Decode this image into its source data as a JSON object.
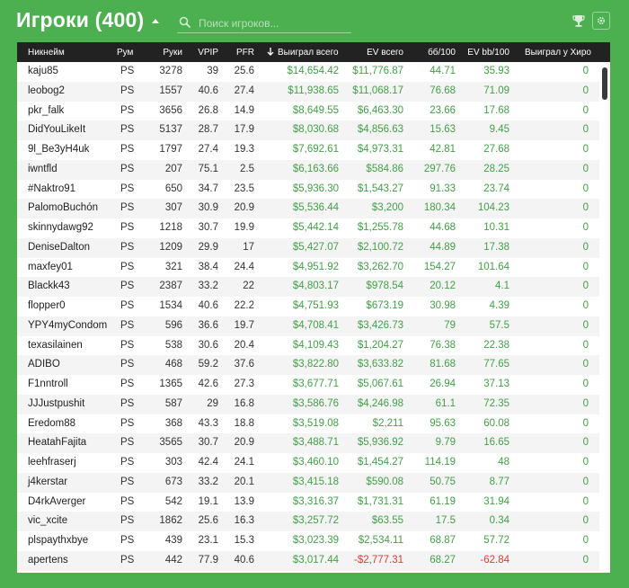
{
  "header": {
    "title": "Игроки (400)",
    "search_placeholder": "Поиск игроков..."
  },
  "icons": {
    "sort": "caret-up-icon",
    "search": "search-icon",
    "trophy": "trophy-icon",
    "settings": "gear-icon",
    "sort_column": "arrow-down-icon"
  },
  "colors": {
    "background": "#4caf50",
    "header_row": "#222222",
    "positive": "#43a047",
    "negative": "#e53935"
  },
  "table": {
    "columns": {
      "nick": "Никнейм",
      "room": "Рум",
      "hands": "Руки",
      "vpip": "VPIP",
      "pfr": "PFR",
      "won": "Выиграл всего",
      "ev": "EV всего",
      "bb100": "бб/100",
      "evbb": "EV bb/100",
      "hero": "Выиграл у Хиро"
    },
    "rows": [
      {
        "nick": "kaju85",
        "room": "PS",
        "hands": "3278",
        "vpip": "39",
        "pfr": "25.6",
        "won": "$14,654.42",
        "ev": "$11,776.87",
        "bb100": "44.71",
        "evbb": "35.93",
        "hero": "0"
      },
      {
        "nick": "leobog2",
        "room": "PS",
        "hands": "1557",
        "vpip": "40.6",
        "pfr": "27.4",
        "won": "$11,938.65",
        "ev": "$11,068.17",
        "bb100": "76.68",
        "evbb": "71.09",
        "hero": "0"
      },
      {
        "nick": "pkr_falk",
        "room": "PS",
        "hands": "3656",
        "vpip": "26.8",
        "pfr": "14.9",
        "won": "$8,649.55",
        "ev": "$6,463.30",
        "bb100": "23.66",
        "evbb": "17.68",
        "hero": "0"
      },
      {
        "nick": "DidYouLikeIt",
        "room": "PS",
        "hands": "5137",
        "vpip": "28.7",
        "pfr": "17.9",
        "won": "$8,030.68",
        "ev": "$4,856.63",
        "bb100": "15.63",
        "evbb": "9.45",
        "hero": "0"
      },
      {
        "nick": "9l_Be3yH4uk",
        "room": "PS",
        "hands": "1797",
        "vpip": "27.4",
        "pfr": "19.3",
        "won": "$7,692.61",
        "ev": "$4,973.31",
        "bb100": "42.81",
        "evbb": "27.68",
        "hero": "0"
      },
      {
        "nick": "iwntfld",
        "room": "PS",
        "hands": "207",
        "vpip": "75.1",
        "pfr": "2.5",
        "won": "$6,163.66",
        "ev": "$584.86",
        "bb100": "297.76",
        "evbb": "28.25",
        "hero": "0"
      },
      {
        "nick": "#Naktro91",
        "room": "PS",
        "hands": "650",
        "vpip": "34.7",
        "pfr": "23.5",
        "won": "$5,936.30",
        "ev": "$1,543.27",
        "bb100": "91.33",
        "evbb": "23.74",
        "hero": "0"
      },
      {
        "nick": "PalomoBuchón",
        "room": "PS",
        "hands": "307",
        "vpip": "30.9",
        "pfr": "20.9",
        "won": "$5,536.44",
        "ev": "$3,200",
        "bb100": "180.34",
        "evbb": "104.23",
        "hero": "0"
      },
      {
        "nick": "skinnydawg92",
        "room": "PS",
        "hands": "1218",
        "vpip": "30.7",
        "pfr": "19.9",
        "won": "$5,442.14",
        "ev": "$1,255.78",
        "bb100": "44.68",
        "evbb": "10.31",
        "hero": "0"
      },
      {
        "nick": "DeniseDalton",
        "room": "PS",
        "hands": "1209",
        "vpip": "29.9",
        "pfr": "17",
        "won": "$5,427.07",
        "ev": "$2,100.72",
        "bb100": "44.89",
        "evbb": "17.38",
        "hero": "0"
      },
      {
        "nick": "maxfey01",
        "room": "PS",
        "hands": "321",
        "vpip": "38.4",
        "pfr": "24.4",
        "won": "$4,951.92",
        "ev": "$3,262.70",
        "bb100": "154.27",
        "evbb": "101.64",
        "hero": "0"
      },
      {
        "nick": "Blackk43",
        "room": "PS",
        "hands": "2387",
        "vpip": "33.2",
        "pfr": "22",
        "won": "$4,803.17",
        "ev": "$978.54",
        "bb100": "20.12",
        "evbb": "4.1",
        "hero": "0"
      },
      {
        "nick": "flopper0",
        "room": "PS",
        "hands": "1534",
        "vpip": "40.6",
        "pfr": "22.2",
        "won": "$4,751.93",
        "ev": "$673.19",
        "bb100": "30.98",
        "evbb": "4.39",
        "hero": "0"
      },
      {
        "nick": "YPY4myCondom",
        "room": "PS",
        "hands": "596",
        "vpip": "36.6",
        "pfr": "19.7",
        "won": "$4,708.41",
        "ev": "$3,426.73",
        "bb100": "79",
        "evbb": "57.5",
        "hero": "0"
      },
      {
        "nick": "texasilainen",
        "room": "PS",
        "hands": "538",
        "vpip": "30.6",
        "pfr": "20.4",
        "won": "$4,109.43",
        "ev": "$1,204.27",
        "bb100": "76.38",
        "evbb": "22.38",
        "hero": "0"
      },
      {
        "nick": "ADIBO",
        "room": "PS",
        "hands": "468",
        "vpip": "59.2",
        "pfr": "37.6",
        "won": "$3,822.80",
        "ev": "$3,633.82",
        "bb100": "81.68",
        "evbb": "77.65",
        "hero": "0"
      },
      {
        "nick": "F1nntroll",
        "room": "PS",
        "hands": "1365",
        "vpip": "42.6",
        "pfr": "27.3",
        "won": "$3,677.71",
        "ev": "$5,067.61",
        "bb100": "26.94",
        "evbb": "37.13",
        "hero": "0"
      },
      {
        "nick": "JJJustpushit",
        "room": "PS",
        "hands": "587",
        "vpip": "29",
        "pfr": "16.8",
        "won": "$3,586.76",
        "ev": "$4,246.98",
        "bb100": "61.1",
        "evbb": "72.35",
        "hero": "0"
      },
      {
        "nick": "Eredom88",
        "room": "PS",
        "hands": "368",
        "vpip": "43.3",
        "pfr": "18.8",
        "won": "$3,519.08",
        "ev": "$2,211",
        "bb100": "95.63",
        "evbb": "60.08",
        "hero": "0"
      },
      {
        "nick": "HeatahFajita",
        "room": "PS",
        "hands": "3565",
        "vpip": "30.7",
        "pfr": "20.9",
        "won": "$3,488.71",
        "ev": "$5,936.92",
        "bb100": "9.79",
        "evbb": "16.65",
        "hero": "0"
      },
      {
        "nick": "leehfraserj",
        "room": "PS",
        "hands": "303",
        "vpip": "42.4",
        "pfr": "24.1",
        "won": "$3,460.10",
        "ev": "$1,454.27",
        "bb100": "114.19",
        "evbb": "48",
        "hero": "0"
      },
      {
        "nick": "j4kerstar",
        "room": "PS",
        "hands": "673",
        "vpip": "33.2",
        "pfr": "20.1",
        "won": "$3,415.18",
        "ev": "$590.08",
        "bb100": "50.75",
        "evbb": "8.77",
        "hero": "0"
      },
      {
        "nick": "D4rkAverger",
        "room": "PS",
        "hands": "542",
        "vpip": "19.1",
        "pfr": "13.9",
        "won": "$3,316.37",
        "ev": "$1,731.31",
        "bb100": "61.19",
        "evbb": "31.94",
        "hero": "0"
      },
      {
        "nick": "vic_xcite",
        "room": "PS",
        "hands": "1862",
        "vpip": "25.6",
        "pfr": "16.3",
        "won": "$3,257.72",
        "ev": "$63.55",
        "bb100": "17.5",
        "evbb": "0.34",
        "hero": "0"
      },
      {
        "nick": "plspaythxbye",
        "room": "PS",
        "hands": "439",
        "vpip": "23.1",
        "pfr": "15.3",
        "won": "$3,023.39",
        "ev": "$2,534.11",
        "bb100": "68.87",
        "evbb": "57.72",
        "hero": "0"
      },
      {
        "nick": "apertens",
        "room": "PS",
        "hands": "442",
        "vpip": "77.9",
        "pfr": "40.6",
        "won": "$3,017.44",
        "ev": "-$2,777.31",
        "bb100": "68.27",
        "evbb": "-62.84",
        "hero": "0"
      }
    ]
  }
}
